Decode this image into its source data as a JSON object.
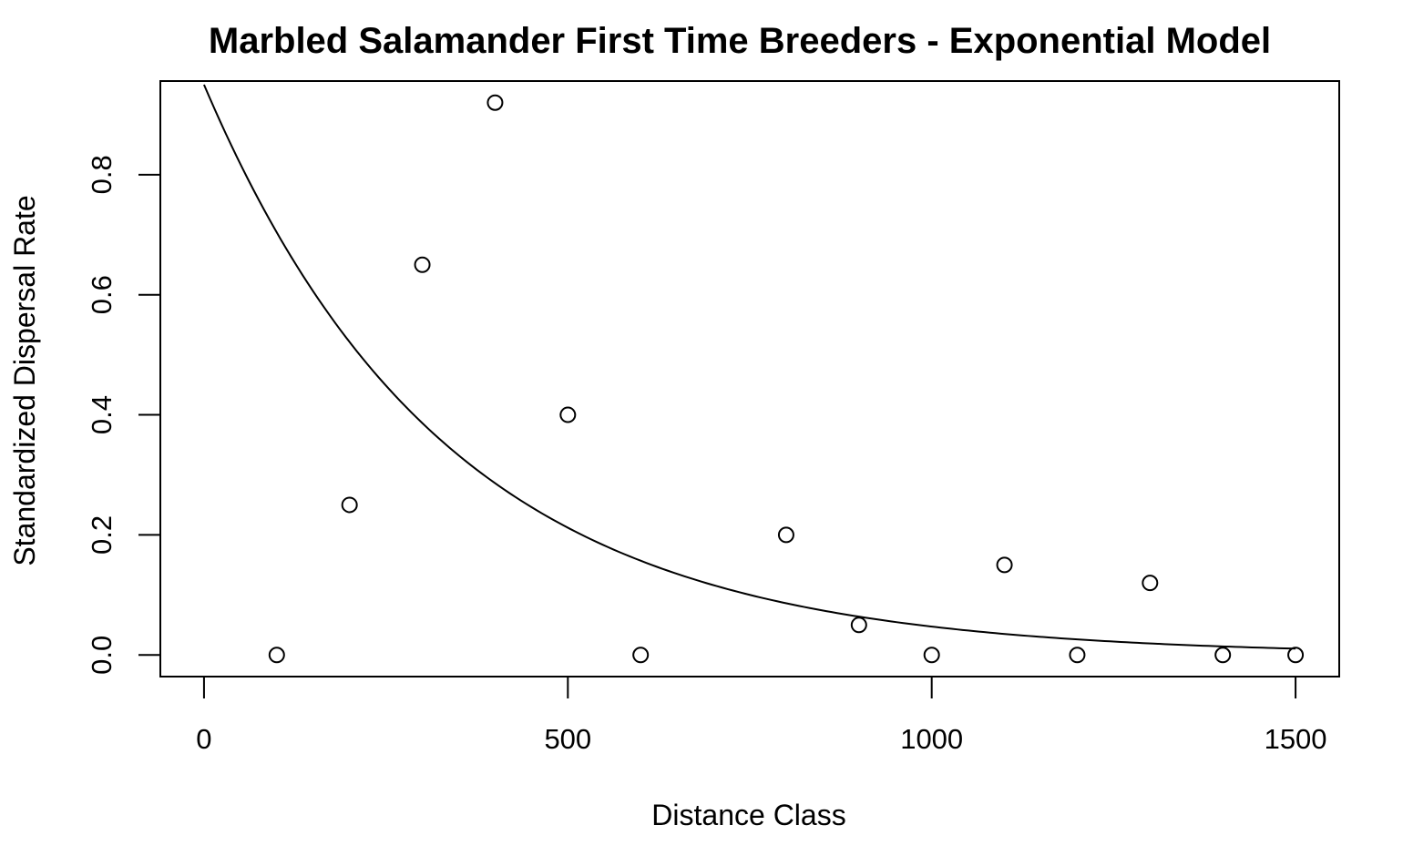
{
  "chart_data": {
    "type": "scatter",
    "title": "Marbled Salamander First Time Breeders - Exponential Model",
    "xlabel": "Distance Class",
    "ylabel": "Standardized Dispersal Rate",
    "xlim": [
      -60,
      1560
    ],
    "ylim": [
      -0.036,
      0.956
    ],
    "x_ticks": [
      0,
      500,
      1000,
      1500
    ],
    "x_tick_labels": [
      "0",
      "500",
      "1000",
      "1500"
    ],
    "y_ticks": [
      0.0,
      0.2,
      0.4,
      0.6,
      0.8
    ],
    "y_tick_labels": [
      "0.0",
      "0.2",
      "0.4",
      "0.6",
      "0.8"
    ],
    "grid": false,
    "points": {
      "marker": "open-circle",
      "x": [
        100,
        200,
        300,
        400,
        500,
        600,
        800,
        900,
        1000,
        1100,
        1200,
        1300,
        1400,
        1500
      ],
      "y": [
        0.0,
        0.25,
        0.65,
        0.92,
        0.4,
        0.0,
        0.2,
        0.05,
        0.0,
        0.15,
        0.0,
        0.12,
        0.0,
        0.0
      ]
    },
    "fit_curve": {
      "model": "exponential",
      "a": 0.95,
      "b": 0.003,
      "x_range": [
        0,
        1500
      ]
    },
    "colors": {
      "ink": "#000000",
      "background": "#ffffff"
    }
  }
}
